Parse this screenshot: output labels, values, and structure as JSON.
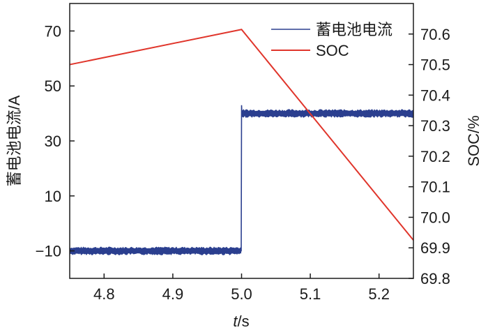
{
  "chart_data": {
    "type": "line",
    "xlabel_var": "t",
    "xlabel_unit": "/s",
    "ylabel_left": "蓄电池电流/A",
    "ylabel_right": "SOC/%",
    "xlim": [
      4.75,
      5.25
    ],
    "ylim_left": [
      -20,
      80
    ],
    "ylim_right": [
      69.8,
      70.7
    ],
    "x_ticks": [
      "4.8",
      "4.9",
      "5.0",
      "5.1",
      "5.2"
    ],
    "x_tick_values": [
      4.8,
      4.9,
      5.0,
      5.1,
      5.2
    ],
    "y_left_ticks": [
      "−10",
      "10",
      "30",
      "50",
      "70"
    ],
    "y_left_tick_values": [
      -10,
      10,
      30,
      50,
      70
    ],
    "y_right_ticks": [
      "69.8",
      "69.9",
      "70.0",
      "70.1",
      "70.2",
      "70.3",
      "70.4",
      "70.5",
      "70.6"
    ],
    "y_right_tick_values": [
      69.8,
      69.9,
      70.0,
      70.1,
      70.2,
      70.3,
      70.4,
      70.5,
      70.6
    ],
    "grid": false,
    "legend_position": "top-right",
    "series": [
      {
        "name": "蓄电池电流",
        "axis": "left",
        "color": "#2b3f8f",
        "x": [
          4.75,
          4.9995,
          5.0,
          5.0005,
          5.01,
          5.25
        ],
        "y": [
          -10,
          -10,
          43,
          40,
          40,
          40
        ],
        "noise_band": 1.6
      },
      {
        "name": "SOC",
        "axis": "right",
        "color": "#e0352b",
        "x": [
          4.75,
          5.0,
          5.25
        ],
        "y": [
          70.5,
          70.615,
          69.925
        ]
      }
    ]
  }
}
